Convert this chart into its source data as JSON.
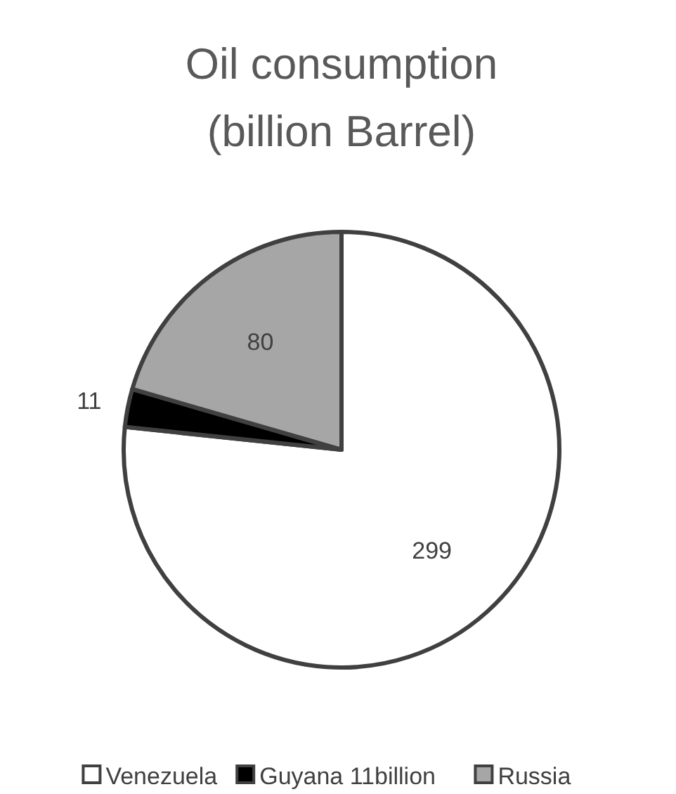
{
  "chart_data": {
    "type": "pie",
    "title": "Oil consumption\n(billion Barrel)",
    "categories": [
      "Venezuela",
      "Guyana 11billion",
      "Russia"
    ],
    "values": [
      299,
      11,
      80
    ],
    "colors": [
      "#ffffff",
      "#000000",
      "#a6a6a6"
    ],
    "data_labels": true,
    "legend": "bottom"
  }
}
